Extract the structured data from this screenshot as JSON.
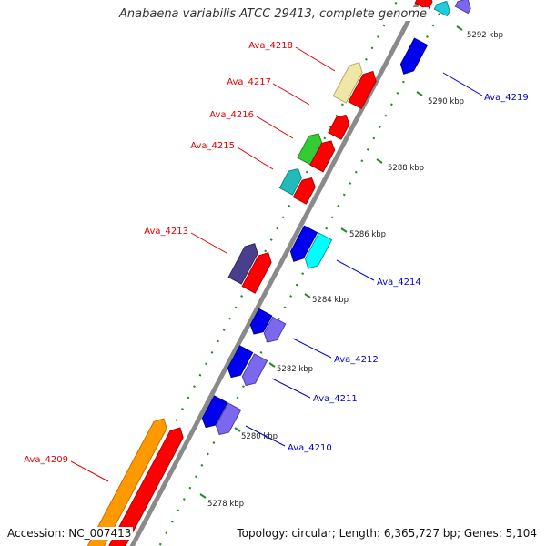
{
  "title": "Anabaena variabilis ATCC 29413, complete genome",
  "footer": {
    "accession": "Accession: NC_007413",
    "summary": "Topology: circular; Length: 6,365,727 bp; Genes: 5,104"
  },
  "colors": {
    "backbone": "#8a8a8a",
    "tick": "#228b22",
    "label_reverse": "#dd0000",
    "label_forward": "#0000cc"
  },
  "scale_labels": [
    "5278 kbp",
    "5280 kbp",
    "5282 kbp",
    "5284 kbp",
    "5286 kbp",
    "5288 kbp",
    "5290 kbp",
    "5292 kbp"
  ],
  "gene_labels": {
    "reverse": [
      "Ava_4218",
      "Ava_4217",
      "Ava_4216",
      "Ava_4215",
      "Ava_4213",
      "Ava_4209"
    ],
    "forward": [
      "Ava_4219",
      "Ava_4214",
      "Ava_4212",
      "Ava_4211",
      "Ava_4210"
    ]
  }
}
